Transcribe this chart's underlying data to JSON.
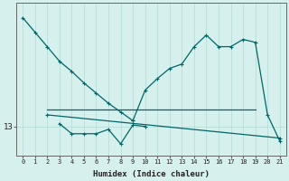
{
  "xlabel": "Humidex (Indice chaleur)",
  "background_color": "#d6f0ee",
  "line_color": "#006666",
  "grid_color": "#b8ddd9",
  "xlim": [
    -0.5,
    21.5
  ],
  "ylim": [
    11.0,
    21.5
  ],
  "ytick_val": 13,
  "series": [
    {
      "x": [
        0,
        1,
        2,
        3,
        4,
        5,
        6,
        7,
        8,
        9
      ],
      "y": [
        20.5,
        19.5,
        18.5,
        17.5,
        16.8,
        16.0,
        15.3,
        14.6,
        14.0,
        13.4
      ]
    },
    {
      "x": [
        2,
        19
      ],
      "y": [
        14.2,
        14.2
      ]
    },
    {
      "x": [
        2,
        21
      ],
      "y": [
        13.8,
        12.2
      ]
    },
    {
      "x": [
        3,
        4,
        5,
        6,
        7,
        8,
        9,
        10
      ],
      "y": [
        13.2,
        12.5,
        12.5,
        12.5,
        12.8,
        11.8,
        13.1,
        13.0
      ]
    },
    {
      "x": [
        9,
        10,
        11,
        12,
        13,
        14,
        15,
        16,
        17,
        18,
        19,
        20,
        21
      ],
      "y": [
        13.4,
        15.5,
        16.3,
        17.0,
        17.3,
        18.5,
        19.3,
        18.5,
        18.5,
        19.0,
        18.8,
        13.8,
        12.0
      ]
    }
  ]
}
